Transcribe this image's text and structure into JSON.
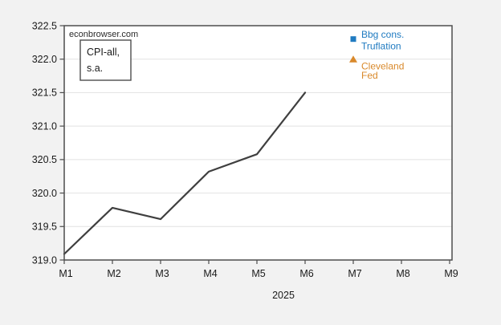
{
  "page": {
    "background_color": "#f2f2f2",
    "plot_background_color": "#ffffff",
    "frame_color": "#4d4d4d",
    "gridline_color": "#e2e2e2"
  },
  "chart_data": {
    "type": "line",
    "watermark": "econbrowser.com",
    "annotation": {
      "line1": "CPI-all,",
      "line2": "s.a."
    },
    "xlabel": "2025",
    "categories": [
      "M1",
      "M2",
      "M3",
      "M4",
      "M5",
      "M6",
      "M7",
      "M8",
      "M9"
    ],
    "ylim": [
      319.0,
      322.5
    ],
    "ytick_step": 0.5,
    "ytick_labels": [
      "319.0",
      "319.5",
      "320.0",
      "320.5",
      "321.0",
      "321.5",
      "322.0",
      "322.5"
    ],
    "grid": "horizontal-only",
    "legend_position": "inside-top-right-at-data-points",
    "series": [
      {
        "name": "CPI-all, s.a.",
        "type": "line",
        "color": "#3f3f3f",
        "categories": [
          "M1",
          "M2",
          "M3",
          "M4",
          "M5",
          "M6"
        ],
        "values": [
          319.09,
          319.78,
          319.61,
          320.32,
          320.58,
          321.5
        ]
      },
      {
        "name": "Bbg cons. Truflation",
        "type": "scatter",
        "marker": "square",
        "color": "#207bc1",
        "categories": [
          "M7"
        ],
        "values": [
          322.3
        ],
        "label_lines": [
          "Bbg cons.",
          "Truflation"
        ]
      },
      {
        "name": "Cleveland Fed",
        "type": "scatter",
        "marker": "triangle-up",
        "color": "#d9892b",
        "categories": [
          "M7"
        ],
        "values": [
          322.0
        ],
        "label_lines": [
          "Cleveland",
          "Fed"
        ]
      }
    ]
  }
}
